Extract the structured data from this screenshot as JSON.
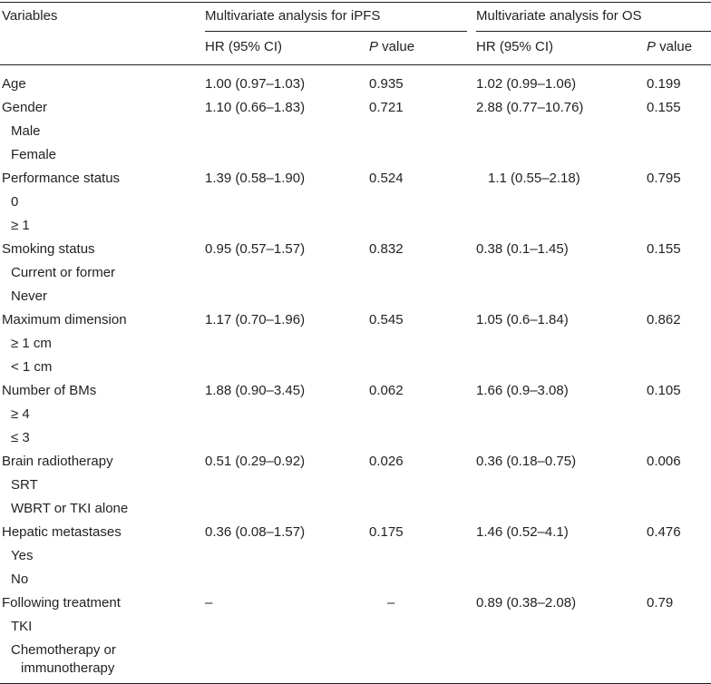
{
  "header": {
    "variables": "Variables",
    "ipfs_group": "Multivariate analysis for iPFS",
    "os_group": "Multivariate analysis for OS",
    "hr_label": "HR (95% CI)",
    "p_italic": "P",
    "p_rest": " value"
  },
  "rows": {
    "age": {
      "label": "Age",
      "hr1": "1.00 (0.97–1.03)",
      "p1": "0.935",
      "hr2": "1.02 (0.99–1.06)",
      "p2": "0.199"
    },
    "gender": {
      "label": "Gender",
      "hr1": "1.10 (0.66–1.83)",
      "p1": "0.721",
      "hr2": "2.88 (0.77–10.76)",
      "p2": "0.155",
      "sub": [
        "Male",
        "Female"
      ]
    },
    "performance": {
      "label": "Performance status",
      "hr1": "1.39 (0.58–1.90)",
      "p1": "0.524",
      "hr2": "1.1 (0.55–2.18)",
      "p2": "0.795",
      "sub": [
        "0",
        "≥ 1"
      ]
    },
    "smoking": {
      "label": "Smoking status",
      "hr1": "0.95 (0.57–1.57)",
      "p1": "0.832",
      "hr2": "0.38 (0.1–1.45)",
      "p2": "0.155",
      "sub": [
        "Current or former",
        "Never"
      ]
    },
    "dimension": {
      "label": "Maximum dimension",
      "hr1": "1.17 (0.70–1.96)",
      "p1": "0.545",
      "hr2": "1.05 (0.6–1.84)",
      "p2": "0.862",
      "sub": [
        "≥ 1 cm",
        "< 1 cm"
      ]
    },
    "bms": {
      "label": "Number of BMs",
      "hr1": "1.88 (0.90–3.45)",
      "p1": "0.062",
      "hr2": "1.66 (0.9–3.08)",
      "p2": "0.105",
      "sub": [
        "≥ 4",
        "≤ 3"
      ]
    },
    "radiotherapy": {
      "label": "Brain radiotherapy",
      "hr1": "0.51 (0.29–0.92)",
      "p1": "0.026",
      "hr2": "0.36 (0.18–0.75)",
      "p2": "0.006",
      "sub": [
        "SRT",
        "WBRT or TKI alone"
      ]
    },
    "hepatic": {
      "label": "Hepatic metastases",
      "hr1": "0.36 (0.08–1.57)",
      "p1": "0.175",
      "hr2": "1.46 (0.52–4.1)",
      "p2": "0.476",
      "sub": [
        "Yes",
        "No"
      ]
    },
    "following": {
      "label": "Following treatment",
      "hr1": "–",
      "p1": "–",
      "hr2": "0.89 (0.38–2.08)",
      "p2": "0.79",
      "sub": [
        "TKI",
        "Chemotherapy or immunotherapy"
      ]
    }
  }
}
